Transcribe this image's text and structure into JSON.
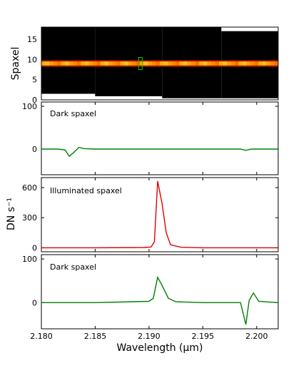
{
  "chart_data": [
    {
      "type": "heatmap",
      "panel": "image",
      "ylabel": "Spaxel",
      "ylim": [
        0,
        18
      ],
      "yticks": [
        0,
        5,
        10,
        15
      ],
      "xlim": [
        2.18,
        2.202
      ],
      "illuminated_row": 9,
      "colors": {
        "background": "#000000",
        "hot": "#ff9900",
        "edge": "#ff2200",
        "box": "#00cc00"
      },
      "highlight_x": 2.1892
    },
    {
      "type": "line",
      "panel": "top",
      "annotation": "Dark spaxel",
      "ylim": [
        -60,
        110
      ],
      "yticks": [
        0,
        100
      ],
      "series": [
        {
          "color": "#008000",
          "x": [
            2.18,
            2.1815,
            2.1822,
            2.1826,
            2.183,
            2.1835,
            2.184,
            2.185,
            2.19,
            2.195,
            2.1985,
            2.199,
            2.1995,
            2.2005,
            2.202
          ],
          "y": [
            0,
            0,
            -2,
            -17,
            -8,
            4,
            1,
            0,
            0,
            0,
            0,
            -3,
            0,
            0,
            0
          ]
        }
      ]
    },
    {
      "type": "line",
      "panel": "middle",
      "annotation": "Illuminated spaxel",
      "ylabel": "DN s⁻¹",
      "ylim": [
        -40,
        700
      ],
      "yticks": [
        0,
        300,
        600
      ],
      "series": [
        {
          "color": "#e00000",
          "x": [
            2.18,
            2.185,
            2.1895,
            2.1902,
            2.1905,
            2.1908,
            2.1912,
            2.1916,
            2.192,
            2.193,
            2.195,
            2.202
          ],
          "y": [
            0,
            0,
            3,
            8,
            60,
            665,
            450,
            150,
            30,
            5,
            0,
            0
          ]
        }
      ]
    },
    {
      "type": "line",
      "panel": "bottom",
      "annotation": "Dark spaxel",
      "ylim": [
        -60,
        110
      ],
      "yticks": [
        0,
        100
      ],
      "xlabel": "Wavelength (μm)",
      "xticks": [
        "2.180",
        "2.185",
        "2.190",
        "2.195",
        "2.200"
      ],
      "xlim": [
        2.18,
        2.202
      ],
      "series": [
        {
          "color": "#008000",
          "x": [
            2.18,
            2.185,
            2.19,
            2.1904,
            2.1908,
            2.1912,
            2.1918,
            2.1925,
            2.195,
            2.1985,
            2.199,
            2.1993,
            2.1997,
            2.2002,
            2.202
          ],
          "y": [
            0,
            0,
            3,
            10,
            58,
            40,
            10,
            2,
            0,
            0,
            -50,
            5,
            22,
            3,
            0
          ]
        }
      ]
    }
  ]
}
